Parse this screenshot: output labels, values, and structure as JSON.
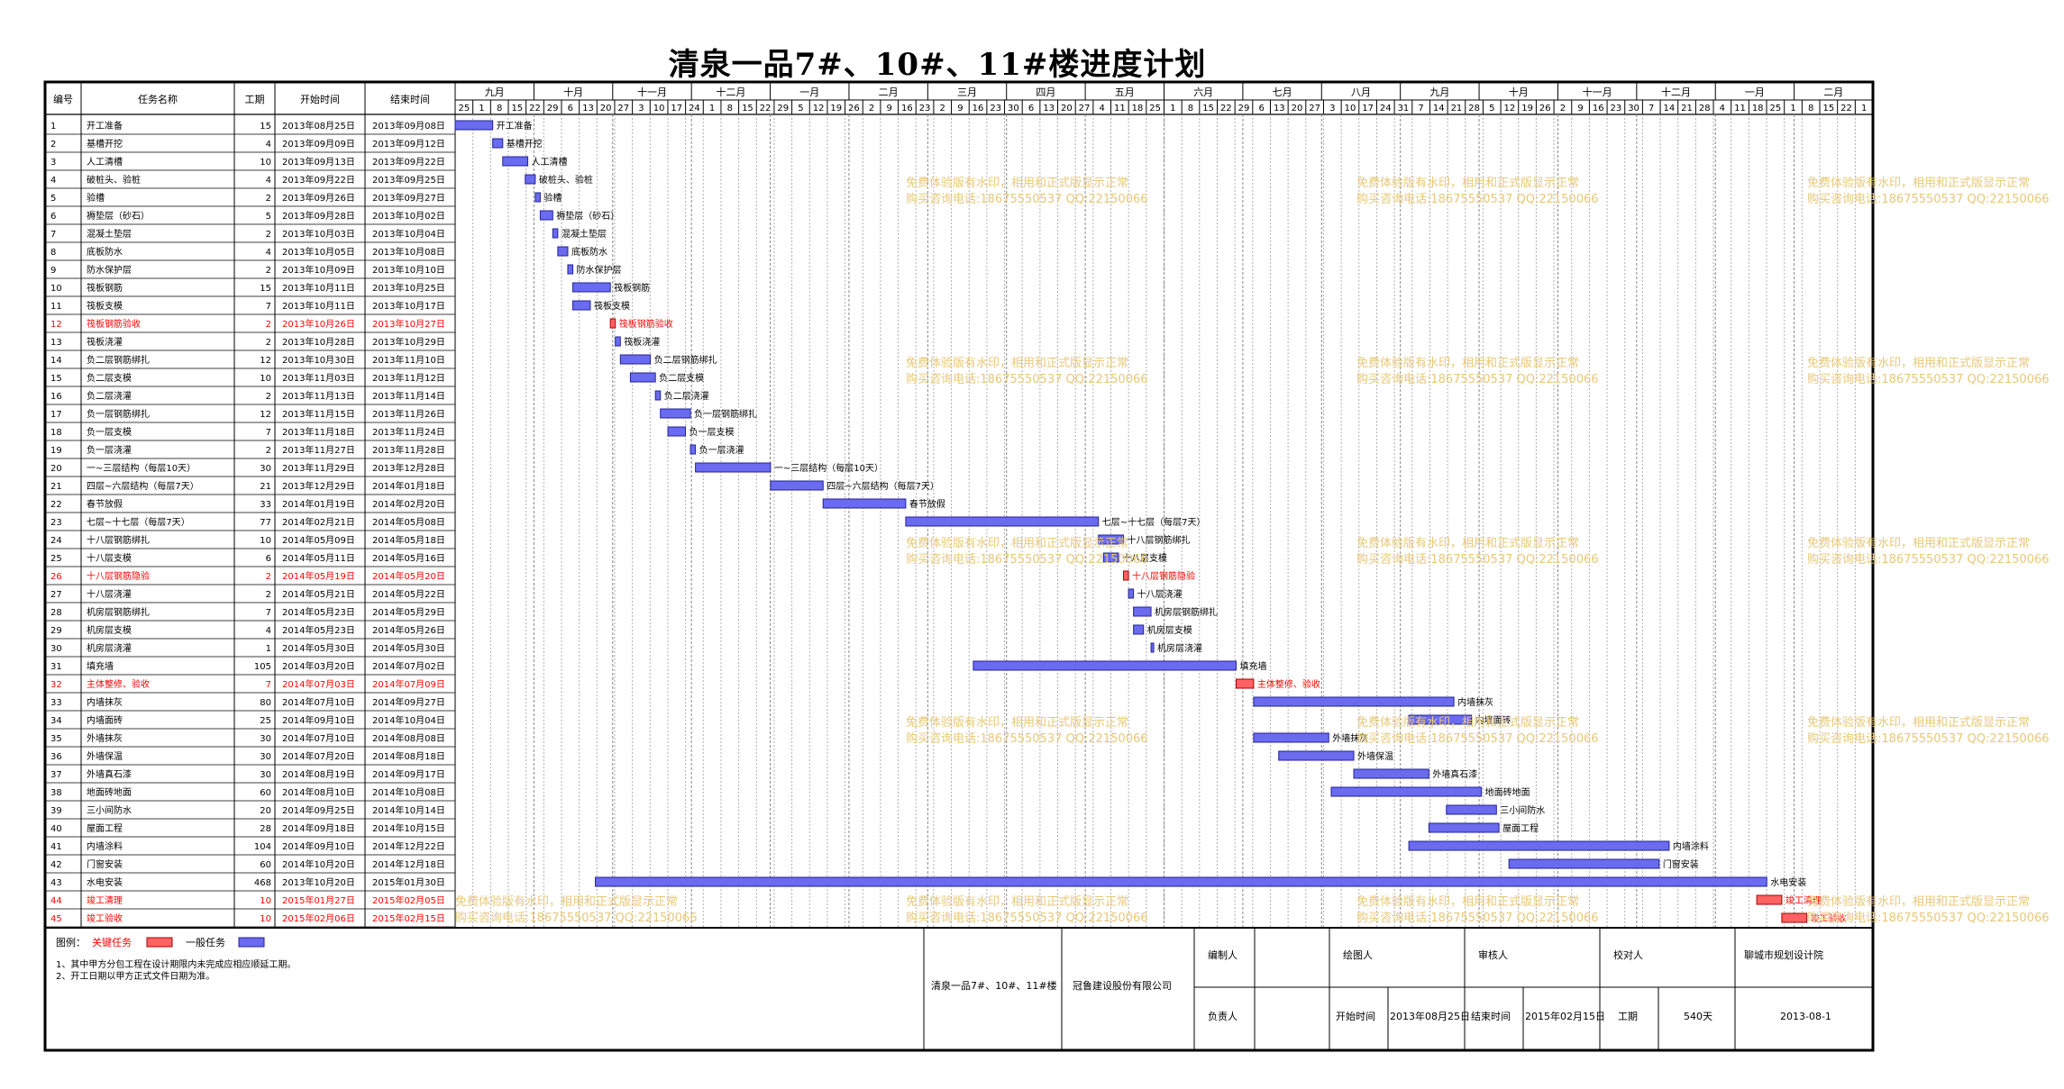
{
  "title": "清泉一品7#、10#、11#楼进度计划",
  "header": {
    "no": "编号",
    "name": "任务名称",
    "dur": "工期",
    "start": "开始时间",
    "end": "结束时间"
  },
  "timeline": {
    "months": [
      "九月",
      "十月",
      "十一月",
      "十二月",
      "一月",
      "二月",
      "三月",
      "四月",
      "五月",
      "六月",
      "七月",
      "八月",
      "九月",
      "十月",
      "十一月",
      "十二月",
      "一月",
      "二月"
    ],
    "days": [
      "25",
      "1",
      "8",
      "15",
      "22",
      "29",
      "6",
      "13",
      "20",
      "27",
      "3",
      "10",
      "17",
      "24",
      "1",
      "8",
      "15",
      "22",
      "29",
      "5",
      "12",
      "19",
      "26",
      "2",
      "9",
      "16",
      "23",
      "2",
      "9",
      "16",
      "23",
      "30",
      "6",
      "13",
      "20",
      "27",
      "4",
      "11",
      "18",
      "25",
      "1",
      "8",
      "15",
      "22",
      "29",
      "6",
      "13",
      "20",
      "27",
      "3",
      "10",
      "17",
      "24",
      "31",
      "7",
      "14",
      "21",
      "28",
      "5",
      "12",
      "19",
      "26",
      "2",
      "9",
      "16",
      "23",
      "30",
      "7",
      "14",
      "21",
      "28",
      "4",
      "11",
      "18",
      "25",
      "1",
      "8",
      "15",
      "22",
      "1"
    ]
  },
  "colors": {
    "critical": "#ff0000",
    "normal": "#000000",
    "bar": "#6b6bf0",
    "bar_crit": "#ff6262",
    "watermark": "#e8c878"
  },
  "watermark": {
    "line1": "免费体验版有水印，相用和正式版显示正常",
    "line2": "购买咨询电话:18675550537 QQ:22150066"
  },
  "tasks": [
    {
      "no": "1",
      "name": "开工准备",
      "dur": "15",
      "start": "2013年08月25日",
      "end": "2013年09月08日",
      "crit": false,
      "s": 0,
      "e": 15
    },
    {
      "no": "2",
      "name": "基槽开挖",
      "dur": "4",
      "start": "2013年09月09日",
      "end": "2013年09月12日",
      "crit": false,
      "s": 15,
      "e": 19
    },
    {
      "no": "3",
      "name": "人工清槽",
      "dur": "10",
      "start": "2013年09月13日",
      "end": "2013年09月22日",
      "crit": false,
      "s": 19,
      "e": 29
    },
    {
      "no": "4",
      "name": "破桩头、验桩",
      "dur": "4",
      "start": "2013年09月22日",
      "end": "2013年09月25日",
      "crit": false,
      "s": 28,
      "e": 32
    },
    {
      "no": "5",
      "name": "验槽",
      "dur": "2",
      "start": "2013年09月26日",
      "end": "2013年09月27日",
      "crit": false,
      "s": 32,
      "e": 34
    },
    {
      "no": "6",
      "name": "褥垫层（砂石）",
      "dur": "5",
      "start": "2013年09月28日",
      "end": "2013年10月02日",
      "crit": false,
      "s": 34,
      "e": 39
    },
    {
      "no": "7",
      "name": "混凝土垫层",
      "dur": "2",
      "start": "2013年10月03日",
      "end": "2013年10月04日",
      "crit": false,
      "s": 39,
      "e": 41
    },
    {
      "no": "8",
      "name": "底板防水",
      "dur": "4",
      "start": "2013年10月05日",
      "end": "2013年10月08日",
      "crit": false,
      "s": 41,
      "e": 45
    },
    {
      "no": "9",
      "name": "防水保护层",
      "dur": "2",
      "start": "2013年10月09日",
      "end": "2013年10月10日",
      "crit": false,
      "s": 45,
      "e": 47
    },
    {
      "no": "10",
      "name": "筏板钢筋",
      "dur": "15",
      "start": "2013年10月11日",
      "end": "2013年10月25日",
      "crit": false,
      "s": 47,
      "e": 62
    },
    {
      "no": "11",
      "name": "筏板支模",
      "dur": "7",
      "start": "2013年10月11日",
      "end": "2013年10月17日",
      "crit": false,
      "s": 47,
      "e": 54
    },
    {
      "no": "12",
      "name": "筏板钢筋验收",
      "dur": "2",
      "start": "2013年10月26日",
      "end": "2013年10月27日",
      "crit": true,
      "s": 62,
      "e": 64
    },
    {
      "no": "13",
      "name": "筏板浇灌",
      "dur": "2",
      "start": "2013年10月28日",
      "end": "2013年10月29日",
      "crit": false,
      "s": 64,
      "e": 66
    },
    {
      "no": "14",
      "name": "负二层钢筋绑扎",
      "dur": "12",
      "start": "2013年10月30日",
      "end": "2013年11月10日",
      "crit": false,
      "s": 66,
      "e": 78
    },
    {
      "no": "15",
      "name": "负二层支模",
      "dur": "10",
      "start": "2013年11月03日",
      "end": "2013年11月12日",
      "crit": false,
      "s": 70,
      "e": 80
    },
    {
      "no": "16",
      "name": "负二层浇灌",
      "dur": "2",
      "start": "2013年11月13日",
      "end": "2013年11月14日",
      "crit": false,
      "s": 80,
      "e": 82
    },
    {
      "no": "17",
      "name": "负一层钢筋绑扎",
      "dur": "12",
      "start": "2013年11月15日",
      "end": "2013年11月26日",
      "crit": false,
      "s": 82,
      "e": 94
    },
    {
      "no": "18",
      "name": "负一层支模",
      "dur": "7",
      "start": "2013年11月18日",
      "end": "2013年11月24日",
      "crit": false,
      "s": 85,
      "e": 92
    },
    {
      "no": "19",
      "name": "负一层浇灌",
      "dur": "2",
      "start": "2013年11月27日",
      "end": "2013年11月28日",
      "crit": false,
      "s": 94,
      "e": 96
    },
    {
      "no": "20",
      "name": "一~三层结构（每层10天）",
      "dur": "30",
      "start": "2013年11月29日",
      "end": "2013年12月28日",
      "crit": false,
      "s": 96,
      "e": 126
    },
    {
      "no": "21",
      "name": "四层~六层结构（每层7天）",
      "dur": "21",
      "start": "2013年12月29日",
      "end": "2014年01月18日",
      "crit": false,
      "s": 126,
      "e": 147
    },
    {
      "no": "22",
      "name": "春节放假",
      "dur": "33",
      "start": "2014年01月19日",
      "end": "2014年02月20日",
      "crit": false,
      "s": 147,
      "e": 180
    },
    {
      "no": "23",
      "name": "七层~十七层（每层7天）",
      "dur": "77",
      "start": "2014年02月21日",
      "end": "2014年05月08日",
      "crit": false,
      "s": 180,
      "e": 257
    },
    {
      "no": "24",
      "name": "十八层钢筋绑扎",
      "dur": "10",
      "start": "2014年05月09日",
      "end": "2014年05月18日",
      "crit": false,
      "s": 257,
      "e": 267
    },
    {
      "no": "25",
      "name": "十八层支模",
      "dur": "6",
      "start": "2014年05月11日",
      "end": "2014年05月16日",
      "crit": false,
      "s": 259,
      "e": 265
    },
    {
      "no": "26",
      "name": "十八层钢筋隐验",
      "dur": "2",
      "start": "2014年05月19日",
      "end": "2014年05月20日",
      "crit": true,
      "s": 267,
      "e": 269
    },
    {
      "no": "27",
      "name": "十八层浇灌",
      "dur": "2",
      "start": "2014年05月21日",
      "end": "2014年05月22日",
      "crit": false,
      "s": 269,
      "e": 271
    },
    {
      "no": "28",
      "name": "机房层钢筋绑扎",
      "dur": "7",
      "start": "2014年05月23日",
      "end": "2014年05月29日",
      "crit": false,
      "s": 271,
      "e": 278
    },
    {
      "no": "29",
      "name": "机房层支模",
      "dur": "4",
      "start": "2014年05月23日",
      "end": "2014年05月26日",
      "crit": false,
      "s": 271,
      "e": 275
    },
    {
      "no": "30",
      "name": "机房层浇灌",
      "dur": "1",
      "start": "2014年05月30日",
      "end": "2014年05月30日",
      "crit": false,
      "s": 278,
      "e": 279
    },
    {
      "no": "31",
      "name": "填充墙",
      "dur": "105",
      "start": "2014年03月20日",
      "end": "2014年07月02日",
      "crit": false,
      "s": 207,
      "e": 312
    },
    {
      "no": "32",
      "name": "主体整修、验收",
      "dur": "7",
      "start": "2014年07月03日",
      "end": "2014年07月09日",
      "crit": true,
      "s": 312,
      "e": 319
    },
    {
      "no": "33",
      "name": "内墙抹灰",
      "dur": "80",
      "start": "2014年07月10日",
      "end": "2014年09月27日",
      "crit": false,
      "s": 319,
      "e": 399
    },
    {
      "no": "34",
      "name": "内墙面砖",
      "dur": "25",
      "start": "2014年09月10日",
      "end": "2014年10月04日",
      "crit": false,
      "s": 381,
      "e": 406
    },
    {
      "no": "35",
      "name": "外墙抹灰",
      "dur": "30",
      "start": "2014年07月10日",
      "end": "2014年08月08日",
      "crit": false,
      "s": 319,
      "e": 349
    },
    {
      "no": "36",
      "name": "外墙保温",
      "dur": "30",
      "start": "2014年07月20日",
      "end": "2014年08月18日",
      "crit": false,
      "s": 329,
      "e": 359
    },
    {
      "no": "37",
      "name": "外墙真石漆",
      "dur": "30",
      "start": "2014年08月19日",
      "end": "2014年09月17日",
      "crit": false,
      "s": 359,
      "e": 389
    },
    {
      "no": "38",
      "name": "地面砖地面",
      "dur": "60",
      "start": "2014年08月10日",
      "end": "2014年10月08日",
      "crit": false,
      "s": 350,
      "e": 410
    },
    {
      "no": "39",
      "name": "三小间防水",
      "dur": "20",
      "start": "2014年09月25日",
      "end": "2014年10月14日",
      "crit": false,
      "s": 396,
      "e": 416
    },
    {
      "no": "40",
      "name": "屋面工程",
      "dur": "28",
      "start": "2014年09月18日",
      "end": "2014年10月15日",
      "crit": false,
      "s": 389,
      "e": 417
    },
    {
      "no": "41",
      "name": "内墙涂料",
      "dur": "104",
      "start": "2014年09月10日",
      "end": "2014年12月22日",
      "crit": false,
      "s": 381,
      "e": 485
    },
    {
      "no": "42",
      "name": "门窗安装",
      "dur": "60",
      "start": "2014年10月20日",
      "end": "2014年12月18日",
      "crit": false,
      "s": 421,
      "e": 481
    },
    {
      "no": "43",
      "name": "水电安装",
      "dur": "468",
      "start": "2013年10月20日",
      "end": "2015年01月30日",
      "crit": false,
      "s": 56,
      "e": 524
    },
    {
      "no": "44",
      "name": "竣工清理",
      "dur": "10",
      "start": "2015年01月27日",
      "end": "2015年02月05日",
      "crit": true,
      "s": 520,
      "e": 530
    },
    {
      "no": "45",
      "name": "竣工验收",
      "dur": "10",
      "start": "2015年02月06日",
      "end": "2015年02月15日",
      "crit": true,
      "s": 530,
      "e": 540
    }
  ],
  "legend": {
    "label": "图例：",
    "critical": "关键任务",
    "normal": "一般任务"
  },
  "notes": [
    "1、其中甲方分包工程在设计期限内未完成应相应顺延工期。",
    "2、开工日期以甲方正式文件日期为准。"
  ],
  "footer": {
    "project": "清泉一品7#、10#、11#楼",
    "company": "冠鲁建设股份有限公司",
    "made_by": "编制人",
    "drawn_by": "绘图人",
    "reviewer": "审核人",
    "checker": "校对人",
    "institute": "聊城市规划设计院",
    "leader": "负责人",
    "start_label": "开始时间",
    "start_value": "2013年08月25日",
    "end_label": "结束时间",
    "end_value": "2015年02月15日",
    "dur_label": "工期",
    "dur_value": "540天",
    "date": "2013-08-1"
  }
}
